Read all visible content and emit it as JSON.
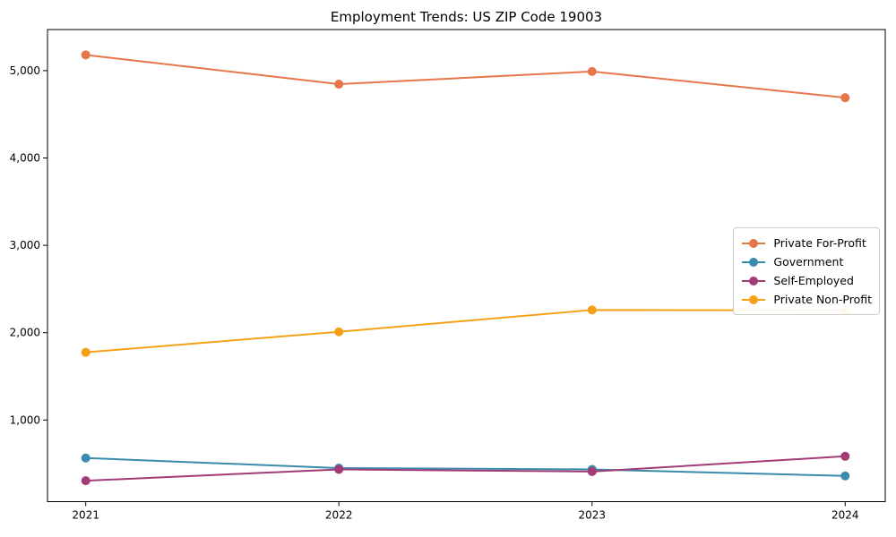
{
  "title": "Employment Trends: US ZIP Code 19003",
  "chart_data": {
    "type": "line",
    "title": "Employment Trends: US ZIP Code 19003",
    "xlabel": "",
    "ylabel": "",
    "x": [
      2021,
      2022,
      2023,
      2024
    ],
    "xtick_labels": [
      "2021",
      "2022",
      "2023",
      "2024"
    ],
    "yticks": [
      1000,
      2000,
      3000,
      4000,
      5000
    ],
    "ytick_labels": [
      "1,000",
      "2,000",
      "3,000",
      "4,000",
      "5,000"
    ],
    "ylim": [
      70,
      5470
    ],
    "grid": false,
    "legend_position": "center right",
    "marker": "circle",
    "series": [
      {
        "name": "Private For-Profit",
        "color": "#E8764B",
        "values": [
          5180,
          4845,
          4990,
          4690
        ]
      },
      {
        "name": "Government",
        "color": "#3A8BAD",
        "values": [
          565,
          450,
          435,
          360
        ]
      },
      {
        "name": "Self-Employed",
        "color": "#A23B76",
        "values": [
          305,
          435,
          410,
          585
        ]
      },
      {
        "name": "Private Non-Profit",
        "color": "#F5A118",
        "values": [
          1775,
          2010,
          2260,
          2255
        ]
      }
    ]
  }
}
